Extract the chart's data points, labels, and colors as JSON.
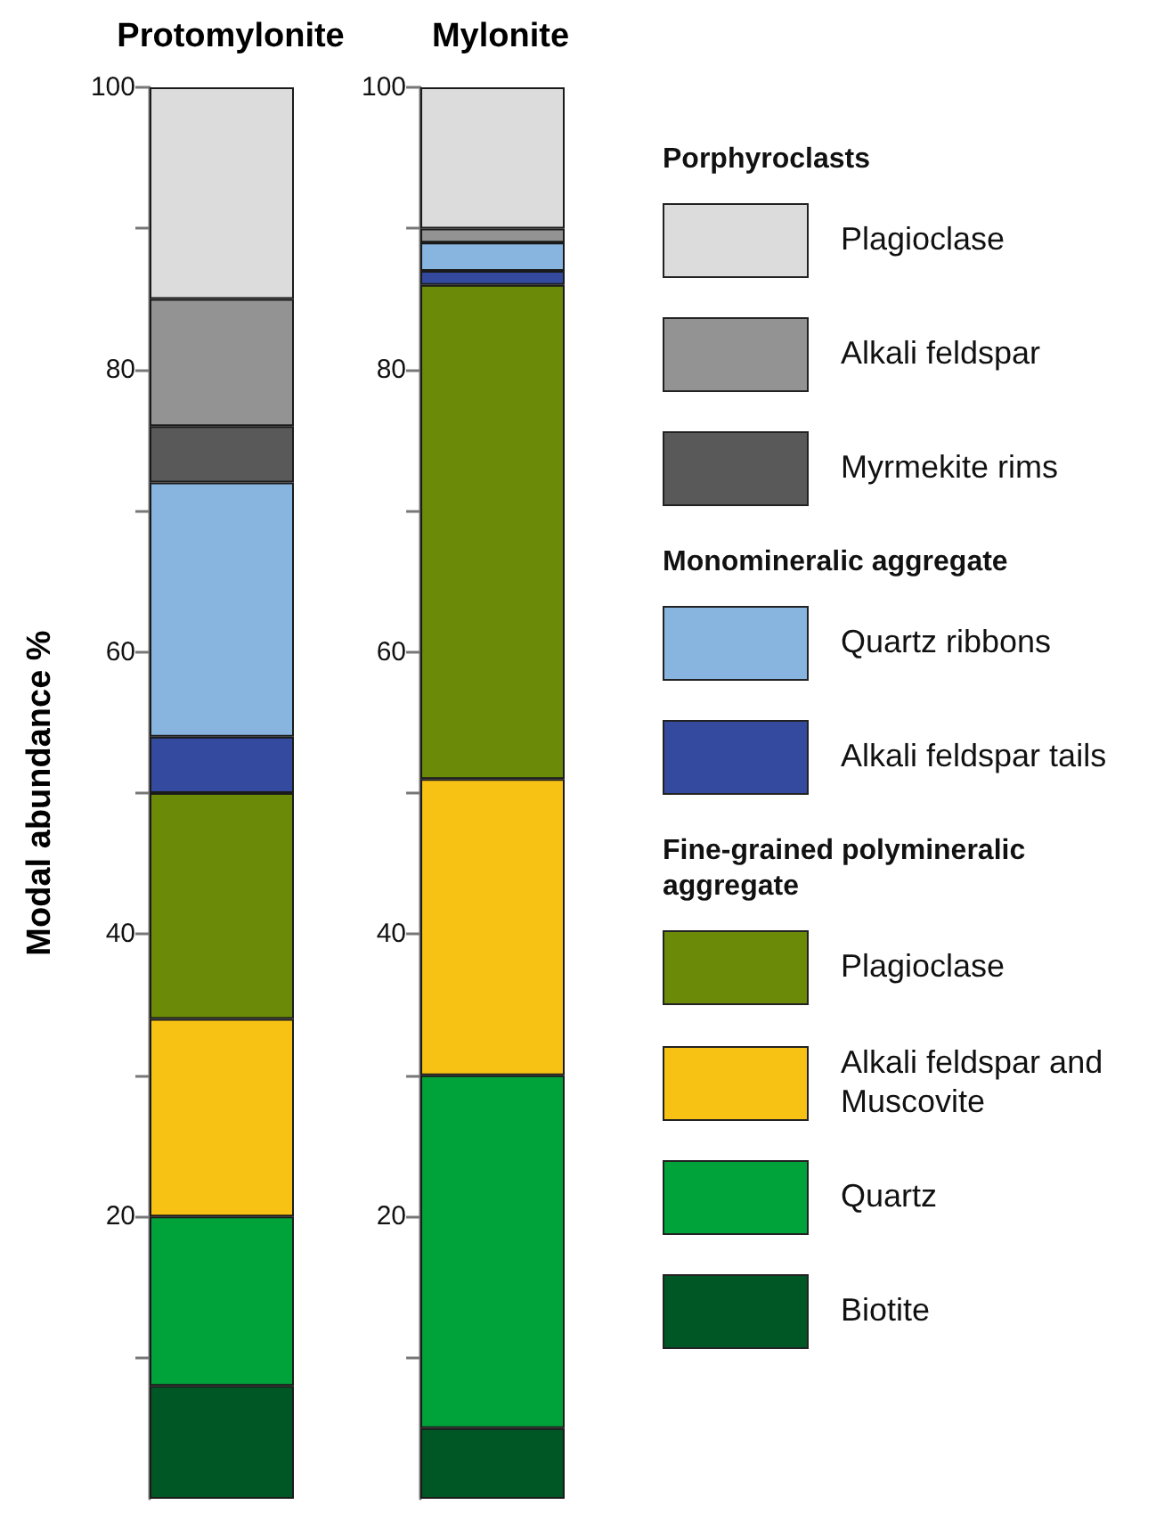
{
  "chart_data": [
    {
      "type": "bar",
      "title": "Protomylonite",
      "ylabel": "Modal abundance %",
      "categories": [
        null
      ],
      "stacked": true,
      "ylim": [
        0,
        100
      ],
      "yticks": [
        {
          "value": 10,
          "label": null
        },
        20,
        {
          "value": 30,
          "label": null
        },
        40,
        {
          "value": 50,
          "label": null
        },
        60,
        {
          "value": 70,
          "label": null
        },
        80,
        {
          "value": 90,
          "label": null
        },
        100
      ],
      "grid": false,
      "series": [
        {
          "color": "#005726",
          "values": [
            8
          ]
        },
        {
          "color": "#00a33a",
          "values": [
            12
          ]
        },
        {
          "color": "#f7c214",
          "values": [
            14
          ]
        },
        {
          "color": "#6b8a07",
          "values": [
            16
          ]
        },
        {
          "color": "#334a9e",
          "values": [
            4
          ]
        },
        {
          "color": "#88b4e0",
          "values": [
            18
          ]
        },
        {
          "color": "#595959",
          "values": [
            4
          ]
        },
        {
          "color": "#939393",
          "values": [
            9
          ]
        },
        {
          "color": "#dcdcdc",
          "values": [
            15
          ]
        }
      ]
    },
    {
      "type": "bar",
      "title": "Mylonite",
      "categories": [
        null
      ],
      "stacked": true,
      "ylim": [
        0,
        100
      ],
      "yticks": [
        {
          "value": 10,
          "label": null
        },
        20,
        {
          "value": 30,
          "label": null
        },
        40,
        {
          "value": 50,
          "label": null
        },
        60,
        {
          "value": 70,
          "label": null
        },
        80,
        {
          "value": 90,
          "label": null
        },
        100
      ],
      "grid": false,
      "legend": "right",
      "annotations": [
        "Porphyroclasts",
        "Monomineralic aggregate",
        "Fine-grained polymineralic aggregate"
      ],
      "series": [
        {
          "name": "Biotite",
          "color": "#005726",
          "values": [
            5
          ]
        },
        {
          "name": "Quartz",
          "color": "#00a33a",
          "values": [
            25
          ]
        },
        {
          "name": "Alkali feldspar and Muscovite",
          "color": "#f7c214",
          "values": [
            21
          ]
        },
        {
          "name": "Plagioclase",
          "color": "#6b8a07",
          "values": [
            35
          ]
        },
        {
          "name": "Alkali feldspar tails",
          "color": "#334a9e",
          "values": [
            1
          ]
        },
        {
          "name": "Quartz ribbons",
          "color": "#88b4e0",
          "values": [
            2
          ]
        },
        {
          "name": "Myrmekite rims",
          "color": "#595959",
          "values": [
            0
          ]
        },
        {
          "name": "Alkali feldspar",
          "color": "#939393",
          "values": [
            1
          ]
        },
        {
          "name": "Plagioclase",
          "color": "#dcdcdc",
          "values": [
            10
          ]
        }
      ]
    }
  ]
}
